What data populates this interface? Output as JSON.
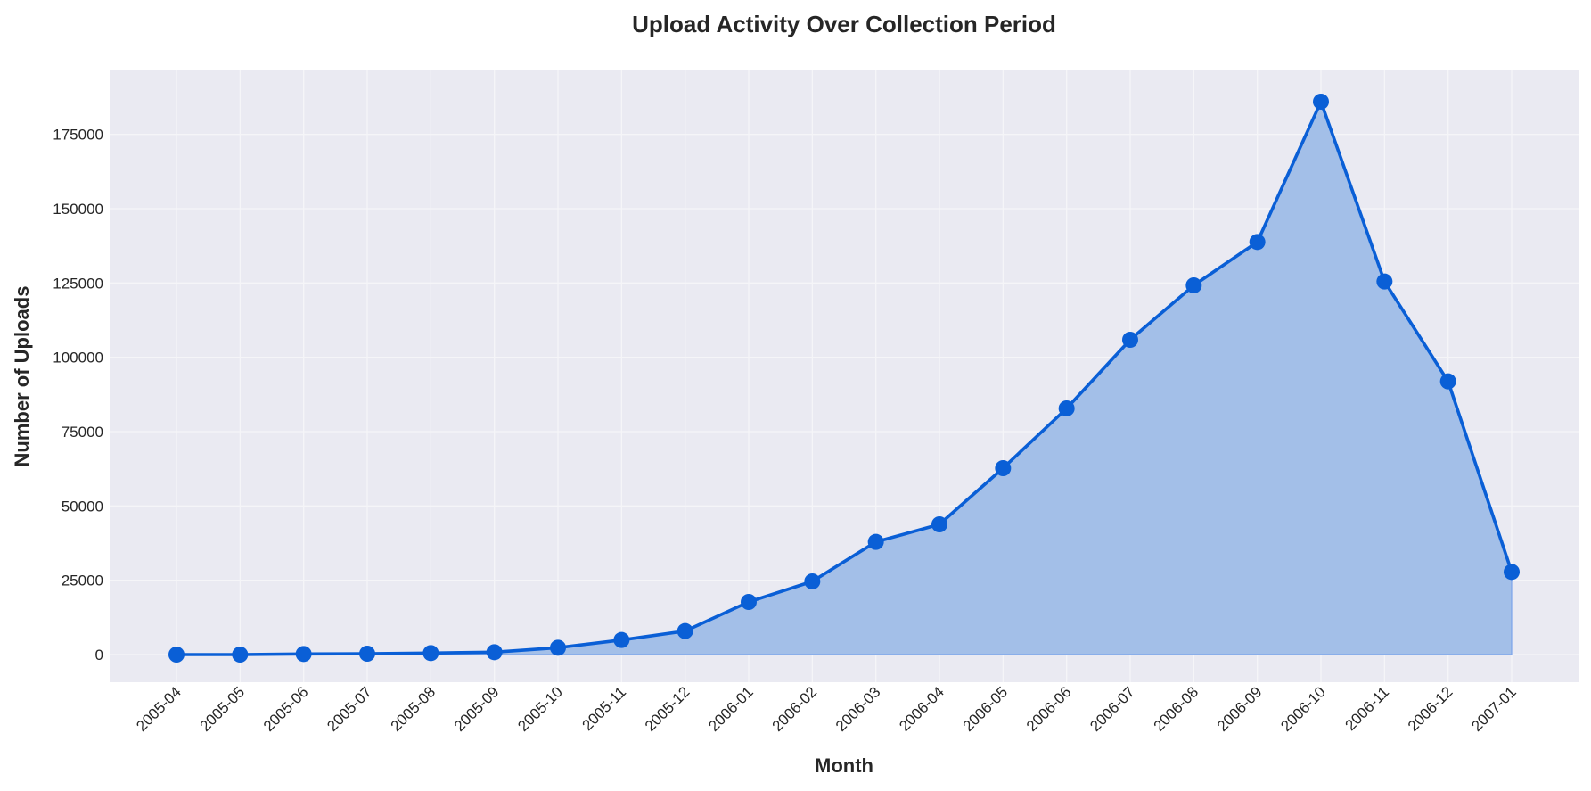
{
  "chart_data": {
    "type": "area",
    "title": "Upload Activity Over Collection Period",
    "xlabel": "Month",
    "ylabel": "Number of Uploads",
    "categories": [
      "2005-04",
      "2005-05",
      "2005-06",
      "2005-07",
      "2005-08",
      "2005-09",
      "2005-10",
      "2005-11",
      "2005-12",
      "2006-01",
      "2006-02",
      "2006-03",
      "2006-04",
      "2006-05",
      "2006-06",
      "2006-07",
      "2006-08",
      "2006-09",
      "2006-10",
      "2006-11",
      "2006-12",
      "2007-01"
    ],
    "series": [
      {
        "name": "Uploads",
        "values": [
          0,
          0,
          200,
          300,
          500,
          800,
          2300,
          4900,
          7900,
          17700,
          24600,
          37900,
          43800,
          62700,
          82800,
          105900,
          124200,
          138800,
          186000,
          125500,
          91900,
          27800
        ]
      }
    ],
    "yticks": [
      0,
      25000,
      50000,
      75000,
      100000,
      125000,
      150000,
      175000
    ],
    "ylim": [
      -9300,
      196500
    ],
    "grid": true,
    "legend": "none",
    "colors": {
      "line": "#0a5fd6",
      "fill": "#a3bfe8",
      "plot_bg": "#eaeaf2",
      "grid": "#f5f5f8",
      "text": "#262626"
    }
  }
}
